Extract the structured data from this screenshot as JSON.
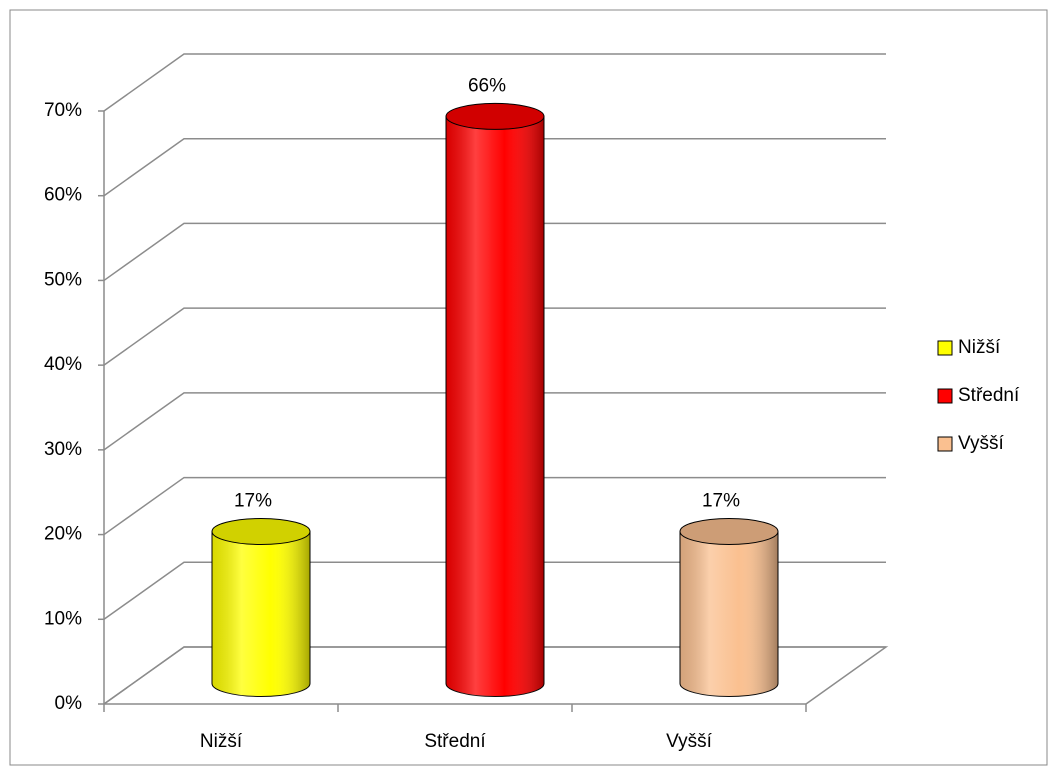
{
  "chart_data": {
    "type": "bar3d",
    "categories": [
      "Nižší",
      "Střední",
      "Vyšší"
    ],
    "values": [
      17,
      66,
      17
    ],
    "value_labels": [
      "17%",
      "66%",
      "17%"
    ],
    "colors": [
      "#ffff00",
      "#ff0000",
      "#fac090"
    ],
    "ylim": [
      0,
      70
    ],
    "yticks": [
      {
        "value": 0,
        "label": "0%"
      },
      {
        "value": 10,
        "label": "10%"
      },
      {
        "value": 20,
        "label": "20%"
      },
      {
        "value": 30,
        "label": "30%"
      },
      {
        "value": 40,
        "label": "40%"
      },
      {
        "value": 50,
        "label": "50%"
      },
      {
        "value": 60,
        "label": "60%"
      },
      {
        "value": 70,
        "label": "70%"
      }
    ],
    "grid": true,
    "legend": "right"
  }
}
